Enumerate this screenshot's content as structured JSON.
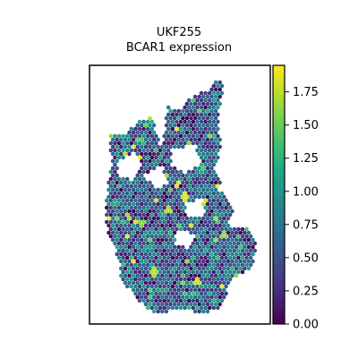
{
  "chart_data": {
    "type": "scatter",
    "subtype": "spatial-hexbin-expression",
    "title": "UKF255",
    "subtitle": "BCAR1 expression",
    "xlabel": "",
    "ylabel": "",
    "colorbar": {
      "colormap": "viridis",
      "range": [
        0.0,
        1.95
      ],
      "ticks": [
        0.0,
        0.25,
        0.5,
        0.75,
        1.0,
        1.25,
        1.5,
        1.75
      ],
      "tick_labels": [
        "0.00",
        "0.25",
        "0.50",
        "0.75",
        "1.00",
        "1.25",
        "1.50",
        "1.75"
      ]
    },
    "tissue_outline": [
      [
        0.06,
        0.24
      ],
      [
        0.16,
        0.23
      ],
      [
        0.25,
        0.18
      ],
      [
        0.32,
        0.16
      ],
      [
        0.38,
        0.29
      ],
      [
        0.42,
        0.12
      ],
      [
        0.5,
        0.13
      ],
      [
        0.55,
        0.08
      ],
      [
        0.66,
        0.05
      ],
      [
        0.71,
        0.0
      ],
      [
        0.76,
        0.02
      ],
      [
        0.72,
        0.17
      ],
      [
        0.74,
        0.3
      ],
      [
        0.7,
        0.38
      ],
      [
        0.74,
        0.44
      ],
      [
        0.72,
        0.47
      ],
      [
        0.8,
        0.52
      ],
      [
        0.82,
        0.56
      ],
      [
        0.78,
        0.63
      ],
      [
        0.9,
        0.63
      ],
      [
        0.96,
        0.72
      ],
      [
        0.92,
        0.81
      ],
      [
        0.8,
        0.86
      ],
      [
        0.74,
        0.97
      ],
      [
        0.64,
        1.0
      ],
      [
        0.5,
        0.98
      ],
      [
        0.34,
        1.0
      ],
      [
        0.24,
        0.94
      ],
      [
        0.14,
        0.86
      ],
      [
        0.12,
        0.76
      ],
      [
        0.06,
        0.66
      ],
      [
        0.04,
        0.56
      ],
      [
        0.06,
        0.44
      ],
      [
        0.08,
        0.36
      ]
    ],
    "tissue_holes": [
      [
        [
          0.12,
          0.35
        ],
        [
          0.22,
          0.31
        ],
        [
          0.26,
          0.36
        ],
        [
          0.2,
          0.43
        ],
        [
          0.12,
          0.41
        ]
      ],
      [
        [
          0.28,
          0.41
        ],
        [
          0.38,
          0.37
        ],
        [
          0.42,
          0.44
        ],
        [
          0.34,
          0.47
        ]
      ],
      [
        [
          0.44,
          0.3
        ],
        [
          0.58,
          0.28
        ],
        [
          0.62,
          0.36
        ],
        [
          0.52,
          0.4
        ],
        [
          0.44,
          0.37
        ]
      ],
      [
        [
          0.52,
          0.53
        ],
        [
          0.62,
          0.51
        ],
        [
          0.64,
          0.58
        ],
        [
          0.54,
          0.59
        ]
      ],
      [
        [
          0.48,
          0.64
        ],
        [
          0.58,
          0.66
        ],
        [
          0.54,
          0.72
        ],
        [
          0.46,
          0.7
        ]
      ]
    ],
    "expression_distribution": {
      "mean": 0.55,
      "max": 1.95,
      "approx_spot_count": 1600
    },
    "hotspots": [
      {
        "x": 0.48,
        "y": 0.45,
        "value": 1.9
      },
      {
        "x": 0.56,
        "y": 0.3,
        "value": 1.8
      },
      {
        "x": 0.52,
        "y": 0.5,
        "value": 1.85
      },
      {
        "x": 0.6,
        "y": 0.86,
        "value": 1.8
      },
      {
        "x": 0.34,
        "y": 0.82,
        "value": 1.75
      },
      {
        "x": 0.18,
        "y": 0.58,
        "value": 1.7
      },
      {
        "x": 0.42,
        "y": 0.56,
        "value": 1.75
      },
      {
        "x": 0.64,
        "y": 0.52,
        "value": 1.8
      },
      {
        "x": 0.26,
        "y": 0.62,
        "value": 1.6
      },
      {
        "x": 0.76,
        "y": 0.66,
        "value": 1.65
      }
    ]
  }
}
